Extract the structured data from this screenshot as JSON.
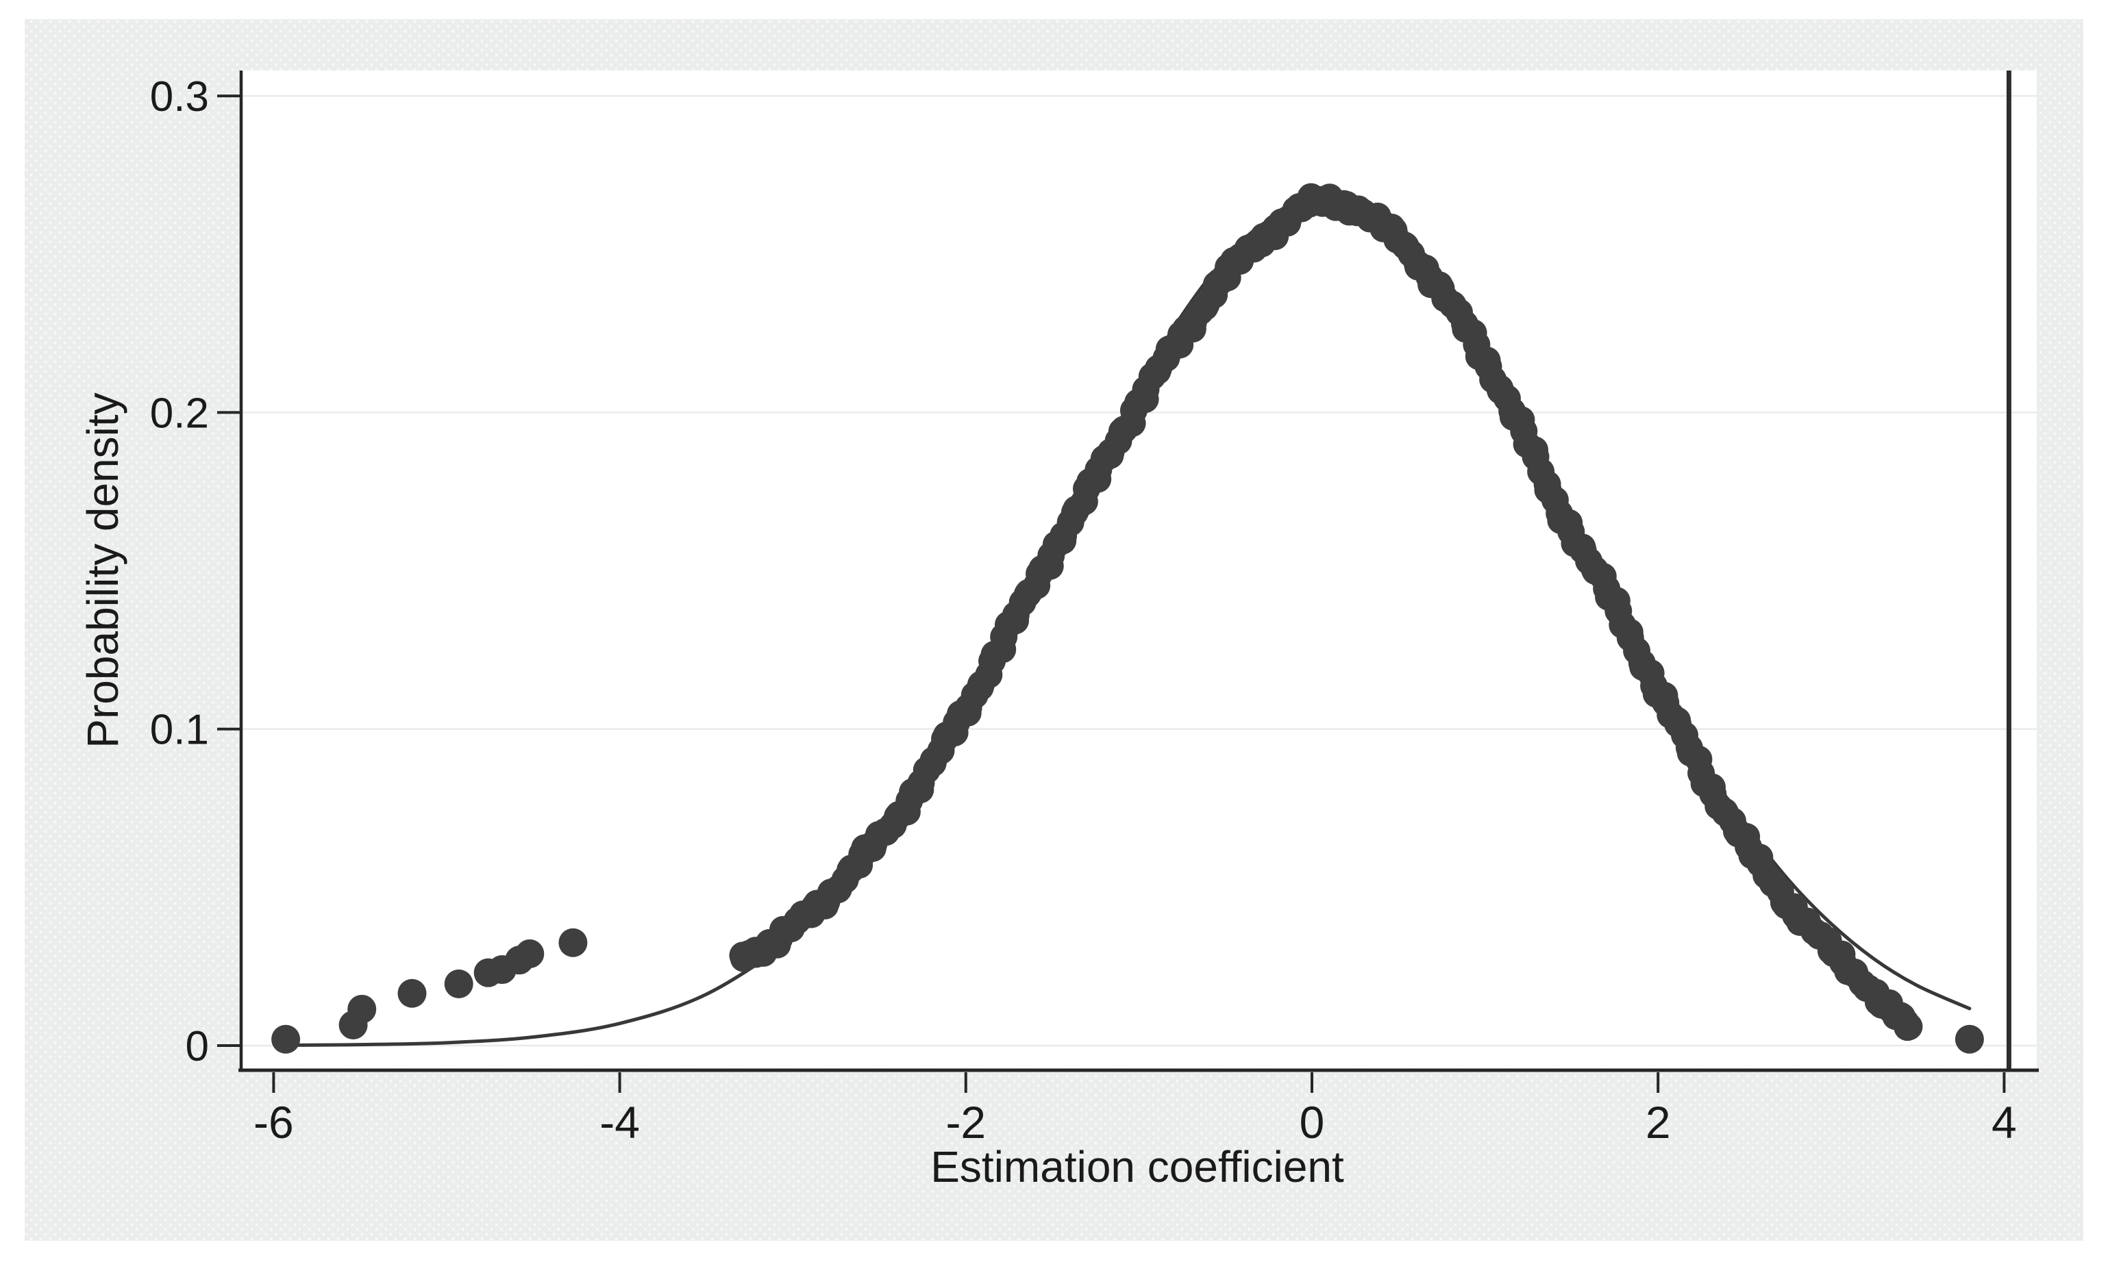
{
  "graph": {
    "background_color": "#ebecec",
    "background_dot_color": "#f7f8f8",
    "plot_background_color": "#ffffff",
    "axis_color": "#262626",
    "grid_color": "#e9eaea",
    "text_color": "#1a1a1a",
    "marker_color": "#3f3f3f",
    "curve_color": "#383838",
    "reference_line_color": "#2d2d2d"
  },
  "chart_data": {
    "type": "scatter",
    "title": "",
    "xlabel": "Estimation coefficient",
    "ylabel": "Probability density",
    "xlim": [
      -6.25,
      4.2
    ],
    "ylim": [
      -0.008,
      0.308
    ],
    "x_ticks": [
      -6,
      -4,
      -2,
      0,
      2,
      4
    ],
    "x_tick_labels": [
      "-6",
      "-4",
      "-2",
      "0",
      "2",
      "4"
    ],
    "y_ticks": [
      0,
      0.1,
      0.2,
      0.3
    ],
    "y_tick_labels": [
      "0",
      "0.1",
      "0.2",
      "0.3"
    ],
    "grid": "horizontal gridlines at y ticks",
    "legend": "none",
    "reference_line_x": 4,
    "series": [
      {
        "name": "Kernel density estimate (marker band)",
        "type": "scatter",
        "marker": "filled-circle",
        "points": [
          [
            -3.3,
            0.0285
          ],
          [
            -3.2,
            0.0305
          ],
          [
            -3.1,
            0.033
          ],
          [
            -3.0,
            0.037
          ],
          [
            -2.9,
            0.042
          ],
          [
            -2.8,
            0.047
          ],
          [
            -2.7,
            0.053
          ],
          [
            -2.6,
            0.059
          ],
          [
            -2.5,
            0.065
          ],
          [
            -2.4,
            0.072
          ],
          [
            -2.3,
            0.08
          ],
          [
            -2.2,
            0.088
          ],
          [
            -2.1,
            0.097
          ],
          [
            -2.0,
            0.106
          ],
          [
            -1.9,
            0.116
          ],
          [
            -1.8,
            0.126
          ],
          [
            -1.7,
            0.136
          ],
          [
            -1.6,
            0.146
          ],
          [
            -1.5,
            0.156
          ],
          [
            -1.4,
            0.165
          ],
          [
            -1.3,
            0.174
          ],
          [
            -1.2,
            0.184
          ],
          [
            -1.1,
            0.194
          ],
          [
            -1.0,
            0.203
          ],
          [
            -0.9,
            0.212
          ],
          [
            -0.8,
            0.22
          ],
          [
            -0.7,
            0.228
          ],
          [
            -0.6,
            0.236
          ],
          [
            -0.5,
            0.243
          ],
          [
            -0.4,
            0.249
          ],
          [
            -0.3,
            0.254
          ],
          [
            -0.2,
            0.259
          ],
          [
            -0.1,
            0.263
          ],
          [
            0.0,
            0.266
          ],
          [
            0.1,
            0.267
          ],
          [
            0.2,
            0.266
          ],
          [
            0.3,
            0.263
          ],
          [
            0.4,
            0.259
          ],
          [
            0.5,
            0.255
          ],
          [
            0.6,
            0.249
          ],
          [
            0.7,
            0.242
          ],
          [
            0.8,
            0.234
          ],
          [
            0.9,
            0.226
          ],
          [
            1.0,
            0.217
          ],
          [
            1.1,
            0.207
          ],
          [
            1.2,
            0.196
          ],
          [
            1.3,
            0.184
          ],
          [
            1.4,
            0.172
          ],
          [
            1.5,
            0.163
          ],
          [
            1.6,
            0.153
          ],
          [
            1.7,
            0.144
          ],
          [
            1.8,
            0.134
          ],
          [
            1.9,
            0.123
          ],
          [
            2.0,
            0.112
          ],
          [
            2.1,
            0.102
          ],
          [
            2.2,
            0.092
          ],
          [
            2.3,
            0.082
          ],
          [
            2.4,
            0.073
          ],
          [
            2.5,
            0.064
          ],
          [
            2.6,
            0.056
          ],
          [
            2.7,
            0.049
          ],
          [
            2.8,
            0.042
          ],
          [
            2.9,
            0.036
          ],
          [
            3.0,
            0.03
          ],
          [
            3.1,
            0.025
          ],
          [
            3.2,
            0.02
          ],
          [
            3.3,
            0.013
          ],
          [
            3.4,
            0.008
          ],
          [
            3.45,
            0.006
          ]
        ]
      },
      {
        "name": "Tail sample markers",
        "type": "scatter",
        "marker": "filled-circle",
        "points": [
          [
            -5.93,
            0.002
          ],
          [
            -5.54,
            0.0065
          ],
          [
            -5.49,
            0.0115
          ],
          [
            -5.2,
            0.0165
          ],
          [
            -4.93,
            0.0195
          ],
          [
            -4.76,
            0.023
          ],
          [
            -4.68,
            0.024
          ],
          [
            -4.58,
            0.027
          ],
          [
            -4.52,
            0.029
          ],
          [
            -4.27,
            0.0325
          ],
          [
            3.8,
            0.002
          ]
        ]
      },
      {
        "name": "Normal density curve",
        "type": "line",
        "points": [
          [
            -5.93,
            0.0001
          ],
          [
            -5.5,
            0.0003
          ],
          [
            -5.0,
            0.0009
          ],
          [
            -4.5,
            0.0027
          ],
          [
            -4.0,
            0.007
          ],
          [
            -3.5,
            0.0162
          ],
          [
            -3.0,
            0.0337
          ],
          [
            -2.75,
            0.0466
          ],
          [
            -2.5,
            0.0627
          ],
          [
            -2.25,
            0.0821
          ],
          [
            -2.0,
            0.1045
          ],
          [
            -1.75,
            0.1295
          ],
          [
            -1.5,
            0.1559
          ],
          [
            -1.25,
            0.1827
          ],
          [
            -1.0,
            0.2082
          ],
          [
            -0.75,
            0.2308
          ],
          [
            -0.5,
            0.2487
          ],
          [
            -0.25,
            0.2607
          ],
          [
            0.05,
            0.266
          ],
          [
            0.25,
            0.2636
          ],
          [
            0.5,
            0.2543
          ],
          [
            0.75,
            0.2385
          ],
          [
            1.0,
            0.2177
          ],
          [
            1.25,
            0.1931
          ],
          [
            1.5,
            0.1667
          ],
          [
            1.75,
            0.14
          ],
          [
            2.0,
            0.1143
          ],
          [
            2.25,
            0.0907
          ],
          [
            2.5,
            0.0701
          ],
          [
            2.75,
            0.0526
          ],
          [
            3.0,
            0.0385
          ],
          [
            3.25,
            0.0273
          ],
          [
            3.5,
            0.0189
          ],
          [
            3.8,
            0.0117
          ]
        ]
      }
    ]
  }
}
